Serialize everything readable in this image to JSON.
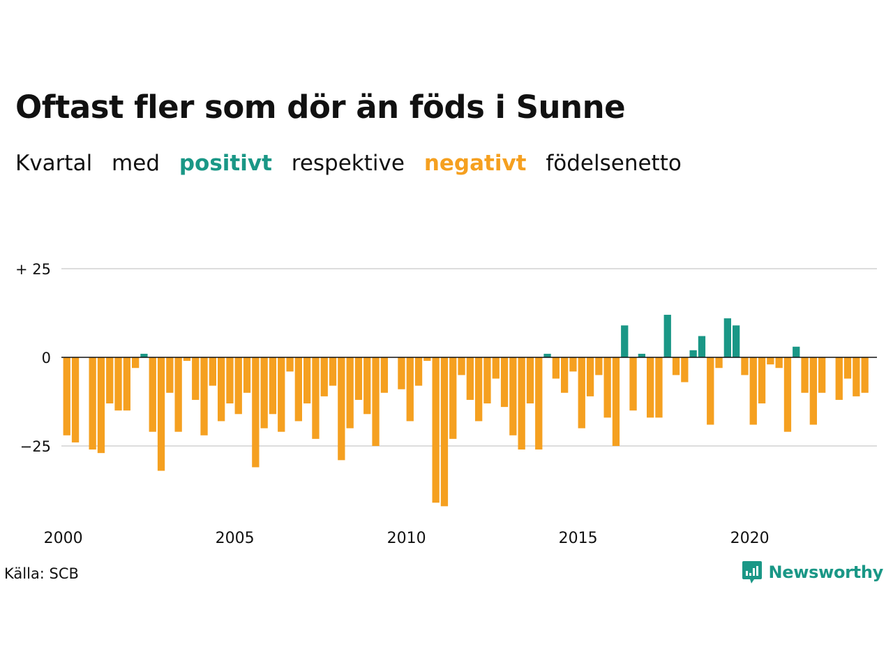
{
  "header": {
    "title": "Oftast fler som dör än föds i Sunne",
    "subtitle_parts": {
      "p1": "Kvartal",
      "p2": "med",
      "pos": "positivt",
      "p4": "respektive",
      "neg": "negativt",
      "p6": "födelsenetto"
    }
  },
  "footer": {
    "source": "Källa: SCB",
    "brand": "Newsworthy"
  },
  "colors": {
    "positive": "#1a9786",
    "negative": "#f5a020",
    "grid": "#dddddd",
    "zero": "#111111",
    "text": "#111111"
  },
  "chart_data": {
    "type": "bar",
    "ylim": [
      -45,
      25
    ],
    "x_start": 2000,
    "x_step": 0.25,
    "xlim": [
      2000,
      2023.75
    ],
    "xticks": [
      {
        "value": 2000,
        "label": "2000"
      },
      {
        "value": 2005,
        "label": "2005"
      },
      {
        "value": 2010,
        "label": "2010"
      },
      {
        "value": 2015,
        "label": "2015"
      },
      {
        "value": 2020,
        "label": "2020"
      }
    ],
    "yticks": [
      {
        "value": 25,
        "label": "+ 25"
      },
      {
        "value": 0,
        "label": "0"
      },
      {
        "value": -25,
        "label": "−25"
      }
    ],
    "grid": true,
    "values": [
      -22,
      -24,
      0,
      -26,
      -27,
      -13,
      -15,
      -15,
      -3,
      1,
      -21,
      -32,
      -10,
      -21,
      -1,
      -12,
      -22,
      -8,
      -18,
      -13,
      -16,
      -10,
      -31,
      -20,
      -16,
      -21,
      -4,
      -18,
      -13,
      -23,
      -11,
      -8,
      -29,
      -20,
      -12,
      -16,
      -25,
      -10,
      0,
      -9,
      -18,
      -8,
      -1,
      -41,
      -42,
      -23,
      -5,
      -12,
      -18,
      -13,
      -6,
      -14,
      -22,
      -26,
      -13,
      -26,
      1,
      -6,
      -10,
      -4,
      -20,
      -11,
      -5,
      -17,
      -25,
      9,
      -15,
      1,
      -17,
      -17,
      12,
      -5,
      -7,
      2,
      6,
      -19,
      -3,
      11,
      9,
      -5,
      -19,
      -13,
      -2,
      -3,
      -21,
      3,
      -10,
      -19,
      -10,
      0,
      -12,
      -6,
      -11,
      -10
    ]
  }
}
